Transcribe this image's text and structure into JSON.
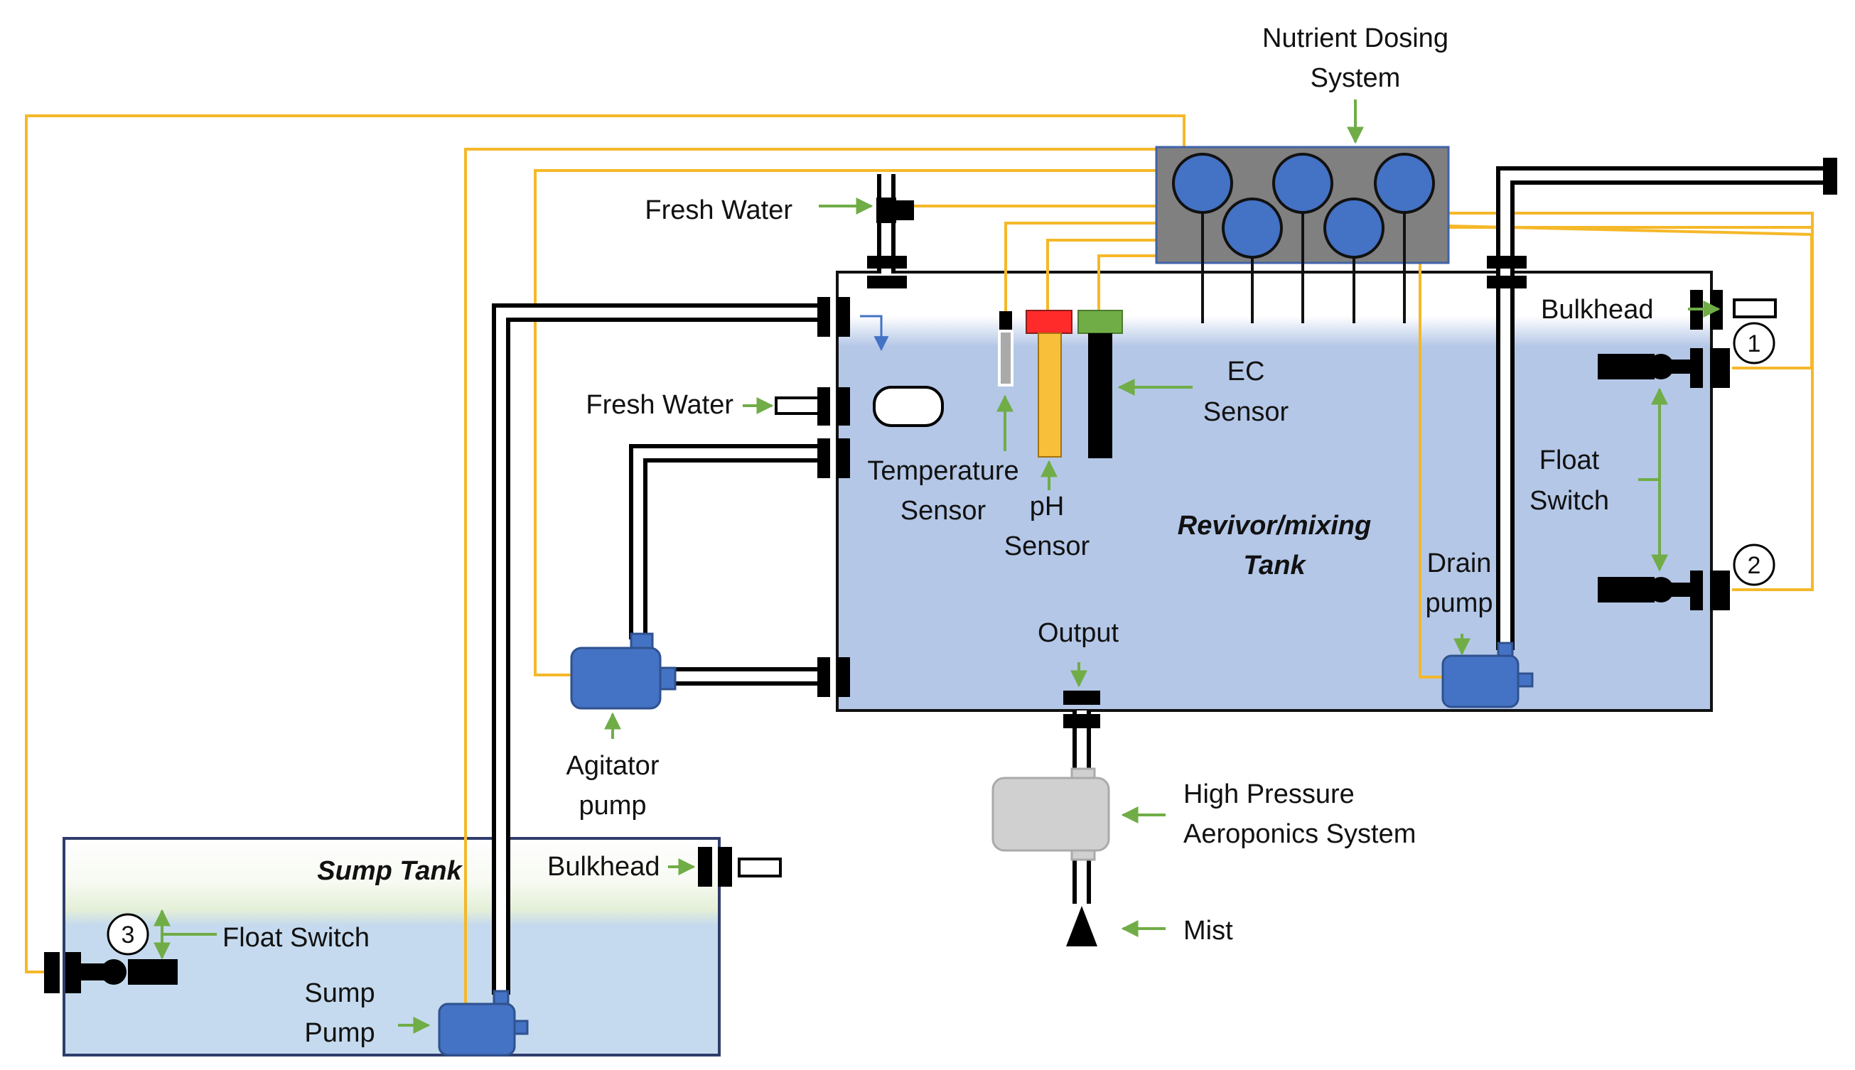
{
  "labels": {
    "nutrient_dosing": [
      "Nutrient Dosing",
      "System"
    ],
    "fresh_water_top": "Fresh Water",
    "fresh_water_mid": "Fresh Water",
    "bulkhead_right": "Bulkhead",
    "bulkhead_sump": "Bulkhead",
    "float_switch_right": [
      "Float",
      "Switch"
    ],
    "float_switch_sump": "Float Switch",
    "ec_sensor": [
      "EC",
      "Sensor"
    ],
    "temperature_sensor": [
      "Temperature",
      "Sensor"
    ],
    "ph_sensor": [
      "pH",
      "Sensor"
    ],
    "reservoir_tank": [
      "Revivor/mixing",
      "Tank"
    ],
    "drain_pump": [
      "Drain",
      "pump"
    ],
    "output": "Output",
    "agitator_pump": [
      "Agitator",
      "pump"
    ],
    "high_pressure": [
      "High Pressure",
      "Aeroponics System"
    ],
    "mist": "Mist",
    "sump_tank": "Sump Tank",
    "sump_pump": [
      "Sump",
      "Pump"
    ]
  },
  "switch_numbers": [
    "1",
    "2",
    "3"
  ],
  "colors": {
    "wire": "#f5b829",
    "arrow": "#70ad47",
    "pump_blue": "#4472c4",
    "pump_border": "#2f528f",
    "water": "#b4c7e7",
    "sump_water": "#c5daee",
    "dosing_box": "#808080",
    "ph_cap": "#ff2a2a",
    "ph_body": "#f8bf3a",
    "ec_cap": "#70ad47",
    "fitting": "#000000",
    "aeroponics_pump": "#d0d0d0"
  }
}
